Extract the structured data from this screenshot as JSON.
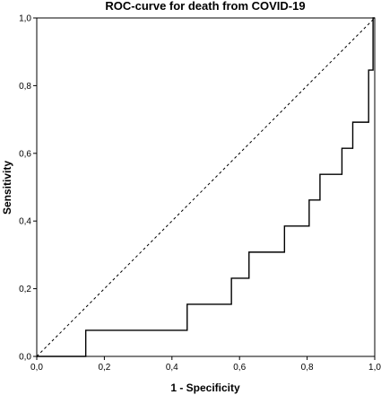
{
  "chart_data": {
    "type": "line",
    "title": "ROC-curve for death from COVID-19",
    "xlabel": "1 - Specificity",
    "ylabel": "Sensitivity",
    "xlim": [
      0,
      1
    ],
    "ylim": [
      0,
      1
    ],
    "x_ticks": [
      "0,0",
      "0,2",
      "0,4",
      "0,6",
      "0,8",
      "1,0"
    ],
    "y_ticks": [
      "0,0",
      "0,2",
      "0,4",
      "0,6",
      "0,8",
      "1,0"
    ],
    "grid": false,
    "legend": "none",
    "series": [
      {
        "style": "step",
        "color": "#000000",
        "points": [
          [
            0.0,
            0.0
          ],
          [
            0.145,
            0.0
          ],
          [
            0.145,
            0.077
          ],
          [
            0.445,
            0.077
          ],
          [
            0.445,
            0.154
          ],
          [
            0.576,
            0.154
          ],
          [
            0.576,
            0.231
          ],
          [
            0.628,
            0.231
          ],
          [
            0.628,
            0.308
          ],
          [
            0.733,
            0.308
          ],
          [
            0.733,
            0.385
          ],
          [
            0.806,
            0.385
          ],
          [
            0.806,
            0.462
          ],
          [
            0.838,
            0.462
          ],
          [
            0.838,
            0.538
          ],
          [
            0.903,
            0.538
          ],
          [
            0.903,
            0.615
          ],
          [
            0.935,
            0.615
          ],
          [
            0.935,
            0.692
          ],
          [
            0.982,
            0.692
          ],
          [
            0.982,
            0.846
          ],
          [
            0.995,
            0.846
          ],
          [
            0.995,
            1.0
          ],
          [
            1.0,
            1.0
          ]
        ]
      },
      {
        "style": "reference-diagonal",
        "color": "#000000",
        "points": [
          [
            0,
            0
          ],
          [
            1,
            1
          ]
        ]
      }
    ]
  }
}
